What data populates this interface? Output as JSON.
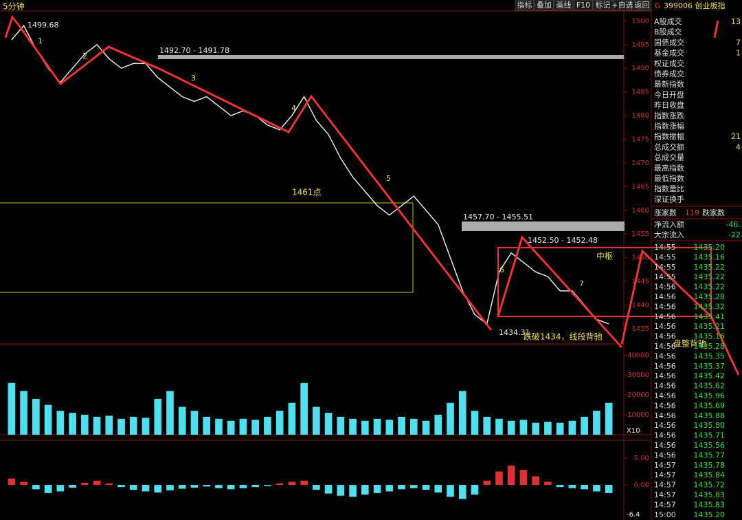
{
  "toolbar": [
    "指标",
    "叠加",
    "画线",
    "F10",
    "标记",
    "+自选",
    "返回"
  ],
  "period": "5分钟",
  "annotations": [
    "1499.68",
    "1492.70 - 1491.78",
    "1457.70 - 1455.51",
    "1452.50 - 1452.48",
    "1434.31",
    "1461点",
    "中枢",
    "跌破1434，线段背驰",
    "盘整背驰",
    "1",
    "2",
    "3",
    "4",
    "5",
    "6",
    "7",
    "X10",
    "-6.4"
  ],
  "panel": {
    "flag": "G",
    "code": "399006 创业板指",
    "rows": [
      [
        "A股成交",
        "13"
      ],
      [
        "B股成交",
        null
      ],
      [
        "国债成交",
        "7"
      ],
      [
        "基金成交",
        "1"
      ],
      [
        "权证成交",
        null
      ],
      [
        "债券成交",
        null
      ],
      [
        "最新指数",
        null
      ],
      [
        "今日开盘",
        null
      ],
      [
        "昨日收盘",
        null
      ],
      [
        "指数涨跌",
        null
      ],
      [
        "指数涨幅",
        null
      ],
      [
        "指数振幅",
        "21"
      ],
      [
        "总成交额",
        "4"
      ],
      [
        "总成交量",
        null
      ],
      [
        "最高指数",
        null
      ],
      [
        "最低指数",
        null
      ],
      [
        "指数量比",
        null
      ],
      [
        "深证换手",
        null
      ]
    ],
    "breadth": [
      "涨家数",
      "119",
      "跌家数"
    ],
    "flows": [
      [
        "净流入额",
        "-46."
      ],
      [
        "大宗流入",
        "-22"
      ]
    ],
    "ticks": [
      [
        "14:55",
        "1435.20"
      ],
      [
        "14:55",
        "1435.16"
      ],
      [
        "14:55",
        "1435.22"
      ],
      [
        "14:55",
        "1435.22"
      ],
      [
        "14:56",
        "1435.22"
      ],
      [
        "14:56",
        "1435.28"
      ],
      [
        "14:56",
        "1435.32"
      ],
      [
        "14:56",
        "1435.41"
      ],
      [
        "14:56",
        "1435.21"
      ],
      [
        "14:56",
        "1435.16"
      ],
      [
        "14:56",
        "1435.28"
      ],
      [
        "14:56",
        "1435.35"
      ],
      [
        "14:56",
        "1435.37"
      ],
      [
        "14:56",
        "1435.42"
      ],
      [
        "14:56",
        "1435.62"
      ],
      [
        "14:56",
        "1435.96"
      ],
      [
        "14:56",
        "1435.69"
      ],
      [
        "14:56",
        "1435.88"
      ],
      [
        "14:56",
        "1435.80"
      ],
      [
        "14:56",
        "1435.71"
      ],
      [
        "14:56",
        "1435.56"
      ],
      [
        "14:56",
        "1435.77"
      ],
      [
        "14:57",
        "1435.78"
      ],
      [
        "14:57",
        "1435.84"
      ],
      [
        "14:57",
        "1435.72"
      ],
      [
        "14:57",
        "1435.83"
      ],
      [
        "14:57",
        "1435.83"
      ],
      [
        "15:00",
        "1435.20"
      ]
    ]
  },
  "chart_data": [
    {
      "type": "line",
      "color": "#e8e8e8",
      "ylim": [
        1431.8,
        1501.5
      ],
      "yticks": [
        1435,
        1440,
        1445,
        1450,
        1455,
        1460,
        1465,
        1470,
        1475,
        1480,
        1485,
        1490,
        1495,
        1500
      ],
      "values": [
        1496,
        1499,
        1494,
        1490,
        1487,
        1490,
        1493,
        1495,
        1492,
        1490,
        1491,
        1491,
        1488,
        1486,
        1484,
        1483,
        1484,
        1482,
        1480,
        1481,
        1480,
        1478,
        1477,
        1480,
        1484,
        1479,
        1476,
        1471,
        1467,
        1464,
        1461,
        1459,
        1461,
        1463,
        1460,
        1457,
        1450,
        1443,
        1438,
        1436,
        1447,
        1451,
        1449,
        1447,
        1446,
        1443,
        1443,
        1440,
        1437,
        1436
      ]
    },
    {
      "type": "bar",
      "color": "#4ee0f0",
      "ylim": [
        0,
        43900
      ],
      "yticks": [
        10000,
        20000,
        30000,
        40000
      ],
      "values": [
        26000,
        22000,
        18000,
        15000,
        12000,
        11000,
        10000,
        9000,
        9500,
        8000,
        9000,
        8500,
        18000,
        22000,
        14000,
        12000,
        9000,
        8000,
        7000,
        8000,
        7500,
        9000,
        12000,
        16000,
        26000,
        14000,
        11000,
        9000,
        8000,
        7000,
        8000,
        7500,
        9000,
        8000,
        7000,
        10000,
        16000,
        22000,
        12000,
        9000,
        8000,
        7000,
        7500,
        6000,
        6500,
        6000,
        7000,
        9000,
        12000,
        16000
      ]
    },
    {
      "type": "bar",
      "color": "#e03030",
      "negative_color": "#4ee0f0",
      "ylim": [
        -6.5,
        8.3
      ],
      "yticks": [
        {
          "value": 0,
          "label": "0.00"
        },
        {
          "value": 5,
          "label": "5.00"
        }
      ],
      "values": [
        1.2,
        0.6,
        -0.8,
        -1.5,
        -1.2,
        -0.5,
        0.4,
        0.8,
        0.3,
        -0.4,
        -0.9,
        -1.2,
        -1.4,
        -1.0,
        -0.7,
        -0.5,
        -0.3,
        -0.6,
        -0.8,
        -0.6,
        -0.4,
        -0.2,
        0.3,
        0.6,
        0.8,
        -0.9,
        -1.6,
        -2.0,
        -2.2,
        -1.8,
        -1.5,
        -1.2,
        -0.8,
        -0.6,
        -0.9,
        -1.4,
        -2.2,
        -2.6,
        -1.8,
        0.8,
        2.5,
        3.6,
        2.8,
        1.6,
        0.6,
        -0.4,
        -0.6,
        -0.8,
        -1.2,
        -1.5
      ]
    }
  ]
}
